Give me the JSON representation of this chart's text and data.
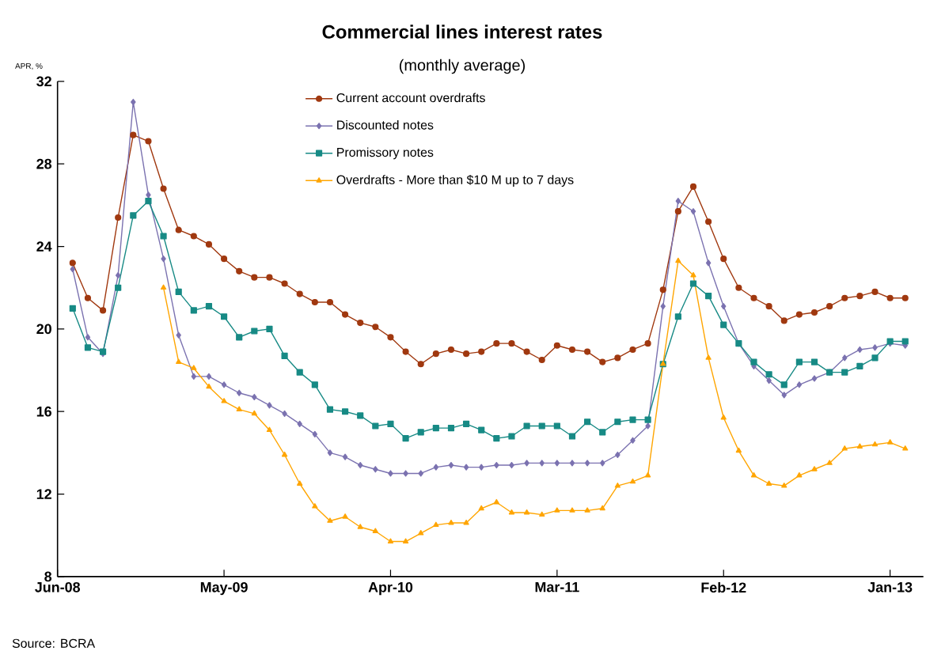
{
  "chart_data": {
    "type": "line",
    "title": "Commercial lines interest rates",
    "subtitle": "(monthly average)",
    "ylabel": "APR, %",
    "annotations": [
      "Source: BCRA"
    ],
    "categories": [
      "Jun-08",
      null,
      null,
      null,
      null,
      null,
      null,
      null,
      null,
      null,
      null,
      "May-09",
      null,
      null,
      null,
      null,
      null,
      null,
      null,
      null,
      null,
      null,
      "Apr-10",
      null,
      null,
      null,
      null,
      null,
      null,
      null,
      null,
      null,
      null,
      "Mar-11",
      null,
      null,
      null,
      null,
      null,
      null,
      null,
      null,
      null,
      null,
      "Feb-12",
      null,
      null,
      null,
      null,
      null,
      null,
      null,
      null,
      null,
      null,
      "Jan-13",
      null
    ],
    "ylim": [
      8,
      32
    ],
    "yticks": [
      8,
      12,
      16,
      20,
      24,
      28,
      32
    ],
    "grid": false,
    "legend": "top",
    "line_style": "solid",
    "series": [
      {
        "name": "Current account overdrafts",
        "color": "#a0380f",
        "marker": "circle",
        "values": [
          null,
          23.2,
          21.5,
          20.9,
          25.4,
          29.4,
          29.1,
          26.8,
          24.8,
          24.5,
          24.1,
          23.4,
          22.8,
          22.5,
          22.5,
          22.2,
          21.7,
          21.3,
          21.3,
          20.7,
          20.3,
          20.1,
          19.6,
          18.9,
          18.3,
          18.8,
          19.0,
          18.8,
          18.9,
          19.3,
          19.3,
          18.9,
          18.5,
          19.2,
          19.0,
          18.9,
          18.4,
          18.6,
          19.0,
          19.3,
          21.9,
          25.7,
          26.9,
          25.2,
          23.4,
          22.0,
          21.5,
          21.1,
          20.4,
          20.7,
          20.8,
          21.1,
          21.5,
          21.6,
          21.8,
          21.5,
          21.5
        ]
      },
      {
        "name": "Discounted notes",
        "color": "#7b72b0",
        "marker": "diamond",
        "values": [
          null,
          22.9,
          19.6,
          18.8,
          22.6,
          31.0,
          26.5,
          23.4,
          19.7,
          17.7,
          17.7,
          17.3,
          16.9,
          16.7,
          16.3,
          15.9,
          15.4,
          14.9,
          14.0,
          13.8,
          13.4,
          13.2,
          13.0,
          13.0,
          13.0,
          13.3,
          13.4,
          13.3,
          13.3,
          13.4,
          13.4,
          13.5,
          13.5,
          13.5,
          13.5,
          13.5,
          13.5,
          13.9,
          14.6,
          15.3,
          21.1,
          26.2,
          25.7,
          23.2,
          21.1,
          19.3,
          18.2,
          17.5,
          16.8,
          17.3,
          17.6,
          17.9,
          18.6,
          19.0,
          19.1,
          19.3,
          19.2
        ]
      },
      {
        "name": "Promissory notes",
        "color": "#178a85",
        "marker": "square",
        "values": [
          null,
          21.0,
          19.1,
          18.9,
          22.0,
          25.5,
          26.2,
          24.5,
          21.8,
          20.9,
          21.1,
          20.6,
          19.6,
          19.9,
          20.0,
          18.7,
          17.9,
          17.3,
          16.1,
          16.0,
          15.8,
          15.3,
          15.4,
          14.7,
          15.0,
          15.2,
          15.2,
          15.4,
          15.1,
          14.7,
          14.8,
          15.3,
          15.3,
          15.3,
          14.8,
          15.5,
          15.0,
          15.5,
          15.6,
          15.6,
          18.3,
          20.6,
          22.2,
          21.6,
          20.2,
          19.3,
          18.4,
          17.8,
          17.3,
          18.4,
          18.4,
          17.9,
          17.9,
          18.2,
          18.6,
          19.4,
          19.4
        ]
      },
      {
        "name": "Overdrafts - More than $10 M up to 7 days",
        "color": "#ffa500",
        "marker": "triangle",
        "values": [
          null,
          null,
          null,
          null,
          null,
          null,
          null,
          22.0,
          18.4,
          18.1,
          17.2,
          16.5,
          16.1,
          15.9,
          15.1,
          13.9,
          12.5,
          11.4,
          10.7,
          10.9,
          10.4,
          10.2,
          9.7,
          9.7,
          10.1,
          10.5,
          10.6,
          10.6,
          11.3,
          11.6,
          11.1,
          11.1,
          11.0,
          11.2,
          11.2,
          11.2,
          11.3,
          12.4,
          12.6,
          12.9,
          18.3,
          23.3,
          22.6,
          18.6,
          15.7,
          14.1,
          12.9,
          12.5,
          12.4,
          12.9,
          13.2,
          13.5,
          14.2,
          14.3,
          14.4,
          14.5,
          14.2
        ]
      }
    ]
  }
}
